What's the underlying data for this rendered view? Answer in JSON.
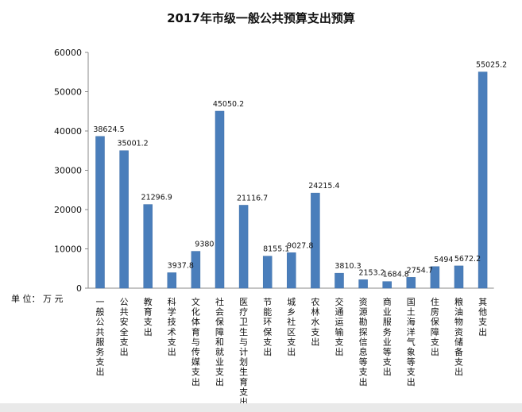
{
  "page": {
    "title": "2017年市级一般公共预算支出预算",
    "unit_label": "单 位： 万 元"
  },
  "colors": {
    "bar": "#4a7ebb",
    "bar_edge": "#3f6fa8",
    "axis": "#888888",
    "text": "#111111"
  },
  "chart_data": {
    "type": "bar",
    "title": "2017年市级一般公共预算支出预算",
    "xlabel": "",
    "ylabel": "",
    "ylim": [
      0,
      60000
    ],
    "yticks": [
      0,
      10000,
      20000,
      30000,
      40000,
      50000,
      60000
    ],
    "grid": false,
    "categories": [
      "一般公共服务支出",
      "公共安全支出",
      "教育支出",
      "科学技术支出",
      "文化体育与传媒支出",
      "社会保障和就业支出",
      "医疗卫生与计划生育支出",
      "节能环保支出",
      "城乡社区支出",
      "农林水支出",
      "交通运输支出",
      "资源勘探信息等支出",
      "商业服务业等支出",
      "国土海洋气象等支出",
      "住房保障支出",
      "粮油物资储备支出",
      "其他支出"
    ],
    "values": [
      38624.5,
      35001.2,
      21296.9,
      3937.8,
      9380,
      45050.2,
      21116.7,
      8155.1,
      9027.8,
      24215.4,
      3810.3,
      2153.2,
      1684.8,
      2754.7,
      5494,
      5672.2,
      55025.2
    ],
    "value_labels": [
      "38624.5",
      "35001.2",
      "21296.9",
      "3937.8",
      "9380",
      "45050.2",
      "21116.7",
      "8155.1",
      "9027.8",
      "24215.4",
      "3810.3",
      "2153.2",
      "1684.8",
      "2754.7",
      "5494",
      "5672.2",
      "55025.2"
    ]
  }
}
